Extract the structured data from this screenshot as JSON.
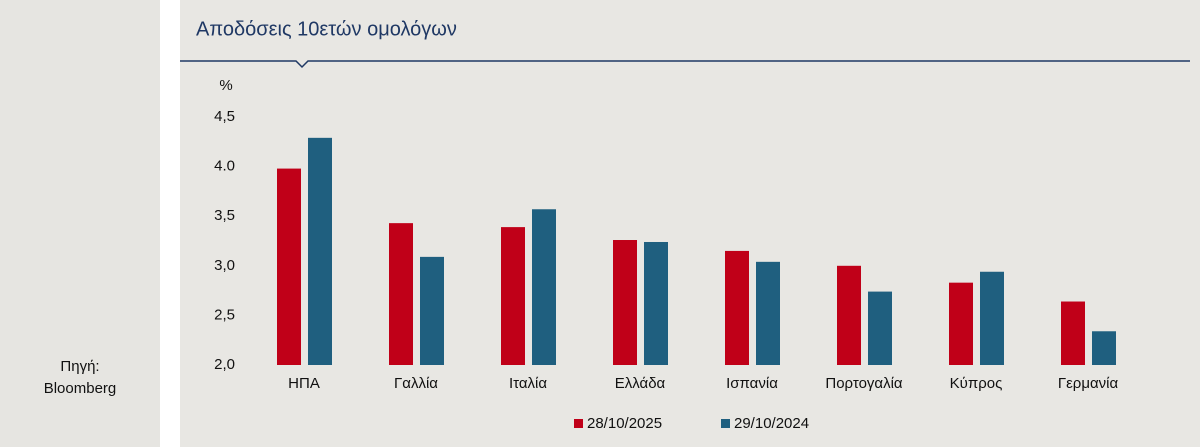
{
  "chart_data": {
    "type": "bar",
    "title": "Αποδόσεις 10ετών ομολόγων",
    "ylabel": "%",
    "source_label": "Πηγή:",
    "source": "Bloomberg",
    "categories": [
      "ΗΠΑ",
      "Γαλλία",
      "Ιταλία",
      "Ελλάδα",
      "Ισπανία",
      "Πορτογαλία",
      "Κύπρος",
      "Γερμανία"
    ],
    "series": [
      {
        "name": "28/10/2025",
        "color": "#c00018",
        "values": [
          3.98,
          3.43,
          3.39,
          3.26,
          3.15,
          3.0,
          2.83,
          2.64
        ]
      },
      {
        "name": "29/10/2024",
        "color": "#1f5f7f",
        "values": [
          4.29,
          3.09,
          3.57,
          3.24,
          3.04,
          2.74,
          2.94,
          2.34
        ]
      }
    ],
    "ylim": [
      2,
      4.5
    ],
    "yticks": [
      {
        "value": 2,
        "label": "2,0"
      },
      {
        "value": 2.5,
        "label": "2,5"
      },
      {
        "value": 3,
        "label": "3,0"
      },
      {
        "value": 3.5,
        "label": "3,5"
      },
      {
        "value": 4,
        "label": "4.0"
      },
      {
        "value": 4.5,
        "label": "4,5"
      }
    ],
    "grid": false,
    "legend": "bottom"
  }
}
